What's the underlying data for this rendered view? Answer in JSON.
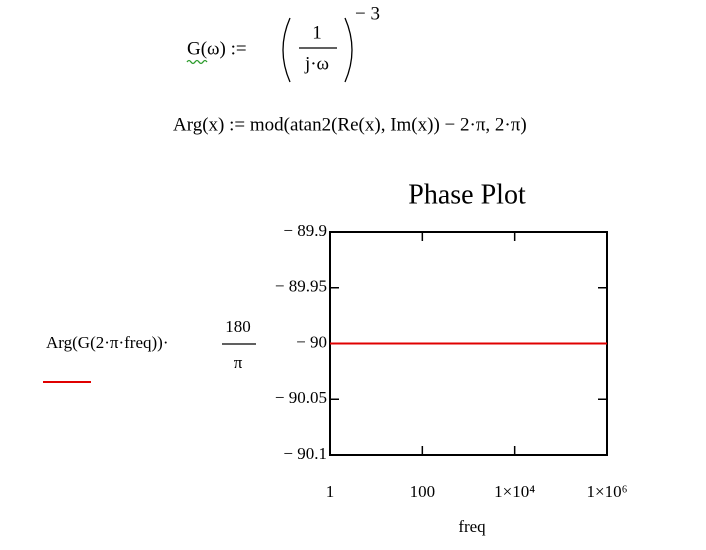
{
  "formulas": [
    {
      "lhs": "G(ω) :=",
      "numerator": "1",
      "denominator": "j·ω",
      "exponent": "− 3"
    },
    {
      "text": "Arg(x) := mod(atan2(Re(x), Im(x)) − 2·π, 2·π)"
    }
  ],
  "chart_data": {
    "type": "line",
    "title": "Phase Plot",
    "xlabel": "freq",
    "ylabel": "Arg(G(2·π·freq))·",
    "ylabel_numerator": "180",
    "ylabel_denominator": "π",
    "xscale": "log",
    "xlim": [
      1,
      1000000
    ],
    "xticks": [
      1,
      100,
      {
        "value": 10000,
        "label": "1×10⁴"
      },
      {
        "value": 1000000,
        "label": "1×10⁶"
      }
    ],
    "ylim": [
      -90.1,
      -89.9
    ],
    "yticks": [
      {
        "value": -89.9,
        "label": "− 89.9"
      },
      {
        "value": -89.95,
        "label": "− 89.95"
      },
      {
        "value": -90,
        "label": "− 90"
      },
      {
        "value": -90.05,
        "label": "− 90.05"
      },
      {
        "value": -90.1,
        "label": "− 90.1"
      }
    ],
    "x": [
      1,
      1000000
    ],
    "series": [
      {
        "color": "#e00000",
        "values": [
          -90,
          -90
        ]
      }
    ]
  }
}
